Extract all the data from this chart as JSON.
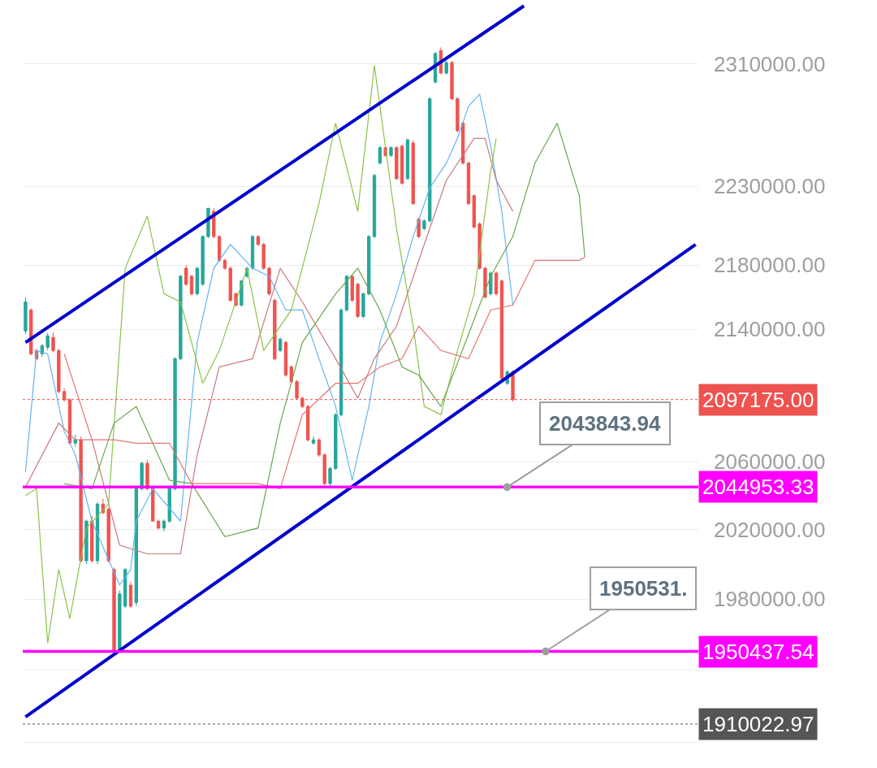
{
  "chart_data": {
    "type": "candlestick",
    "categories": [
      null,
      null,
      null,
      null,
      null,
      null,
      null,
      null,
      null,
      null,
      null,
      null,
      null,
      null,
      null,
      null,
      null,
      null,
      null,
      null,
      null,
      null,
      null,
      null,
      null,
      null,
      null,
      null,
      null,
      null,
      null,
      null,
      null,
      null,
      null,
      null,
      null,
      null,
      null,
      null,
      null,
      null,
      null,
      null,
      null,
      null,
      null,
      null,
      null,
      null,
      null,
      null,
      null,
      null,
      null,
      null,
      null,
      null,
      null,
      null,
      null,
      null,
      null,
      null,
      null,
      null,
      null,
      null,
      null,
      null,
      null,
      null,
      null,
      null,
      null,
      null,
      null,
      null,
      null,
      null,
      null,
      null,
      null,
      null,
      null,
      null,
      null,
      null,
      null,
      null,
      null,
      null,
      null,
      null,
      null,
      null,
      null,
      null,
      null,
      null,
      null,
      null,
      null,
      null,
      null,
      null,
      null,
      null,
      null,
      null,
      null,
      null,
      null,
      null,
      null,
      null,
      null,
      null,
      null,
      null,
      null,
      null
    ],
    "colors": [
      "#26a69a",
      "#ef5350",
      "#ef5350",
      "#26a69a",
      "#26a69a",
      "#ef5350",
      "#ef5350",
      "#ef5350",
      "#ef5350",
      "#26a69a",
      "#ef5350",
      "#26a69a",
      "#ef5350",
      "#26a69a",
      "#ef5350",
      "#ef5350",
      "#ef5350",
      "#26a69a",
      "#26a69a",
      "#ef5350",
      "#26a69a",
      "#26a69a",
      "#ef5350",
      "#ef5350",
      "#ef5350",
      "#26a69a",
      "#26a69a",
      "#26a69a",
      "#26a69a",
      "#ef5350",
      "#ef5350",
      "#26a69a",
      "#26a69a",
      "#26a69a",
      "#ef5350",
      "#ef5350",
      "#ef5350",
      "#ef5350",
      "#ef5350",
      "#26a69a",
      "#26a69a",
      "#26a69a",
      "#ef5350",
      "#ef5350",
      "#ef5350",
      "#ef5350",
      "#26a69a",
      "#ef5350",
      "#ef5350",
      "#ef5350",
      "#ef5350",
      "#ef5350",
      "#26a69a",
      "#ef5350",
      "#ef5350",
      "#26a69a",
      "#26a69a",
      "#26a69a",
      "#26a69a",
      "#ef5350",
      "#ef5350",
      "#26a69a",
      "#26a69a",
      "#26a69a",
      "#26a69a",
      "#ef5350",
      "#26a69a",
      "#ef5350",
      "#ef5350",
      "#26a69a",
      "#ef5350",
      "#ef5350",
      "#26a69a",
      "#26a69a",
      "#26a69a",
      "#ef5350",
      "#26a69a",
      "#ef5350",
      "#ef5350",
      "#ef5350",
      "#ef5350",
      "#ef5350",
      "#ef5350",
      "#ef5350",
      "#26a69a",
      "#ef5350",
      "#ef5350",
      "#26a69a",
      "#ef5350",
      null,
      null,
      null,
      null,
      null,
      null,
      null,
      null,
      null,
      null,
      null,
      null,
      null,
      null,
      null,
      null,
      null,
      null,
      null,
      null,
      null,
      null,
      null,
      null,
      null,
      null,
      null,
      null,
      null,
      null,
      null,
      null,
      null
    ],
    "ohlc": [
      [
        2139000,
        2160000,
        2137000,
        2157000
      ],
      [
        2152000,
        2153000,
        2124000,
        2125000
      ],
      [
        2127000,
        2128000,
        2121000,
        2122000
      ],
      [
        2125000,
        2131000,
        2123000,
        2130000
      ],
      [
        2129000,
        2138000,
        2127000,
        2136000
      ],
      [
        2135000,
        2138000,
        2126000,
        2127000
      ],
      [
        2127000,
        2128000,
        2101000,
        2102000
      ],
      [
        2102000,
        2104000,
        2096000,
        2097000
      ],
      [
        2097000,
        2098000,
        2070000,
        2071000
      ],
      [
        2071000,
        2076000,
        2069000,
        2073000
      ],
      [
        2073000,
        2075000,
        2001000,
        2002000
      ],
      [
        2002000,
        2026000,
        2000000,
        2025000
      ],
      [
        2025000,
        2028000,
        2001000,
        2002000
      ],
      [
        2002000,
        2036000,
        2000000,
        2035000
      ],
      [
        2035000,
        2038000,
        2029000,
        2030000
      ],
      [
        2032000,
        2033000,
        2001000,
        2002000
      ],
      [
        1997000,
        1998000,
        1950000,
        1951000
      ],
      [
        1951000,
        1985000,
        1950000,
        1983000
      ],
      [
        1976000,
        1998000,
        1975000,
        1997000
      ],
      [
        1988000,
        1990000,
        1975000,
        1976000
      ],
      [
        1978000,
        2045000,
        1976000,
        2044000
      ],
      [
        2044000,
        2060000,
        2043000,
        2059000
      ],
      [
        2059000,
        2061000,
        2043000,
        2044000
      ],
      [
        2044000,
        2045000,
        2025000,
        2025000
      ],
      [
        2025000,
        2026000,
        2020000,
        2021000
      ],
      [
        2021000,
        2026000,
        2019000,
        2025000
      ],
      [
        2025000,
        2045000,
        2024000,
        2044000
      ],
      [
        2044000,
        2123000,
        2043000,
        2122000
      ],
      [
        2122000,
        2174000,
        2121000,
        2173000
      ],
      [
        2178000,
        2180000,
        2167000,
        2168000
      ],
      [
        2173000,
        2174000,
        2161000,
        2162000
      ],
      [
        2162000,
        2179000,
        2161000,
        2178000
      ],
      [
        2168000,
        2199000,
        2167000,
        2198000
      ],
      [
        2198000,
        2216000,
        2197000,
        2216000
      ],
      [
        2214000,
        2216000,
        2197000,
        2198000
      ],
      [
        2198000,
        2199000,
        2182000,
        2183000
      ],
      [
        2183000,
        2184000,
        2177000,
        2178000
      ],
      [
        2178000,
        2179000,
        2157000,
        2158000
      ],
      [
        2162000,
        2163000,
        2154000,
        2155000
      ],
      [
        2155000,
        2171000,
        2154000,
        2170000
      ],
      [
        2173000,
        2179000,
        2172000,
        2178000
      ],
      [
        2178000,
        2199000,
        2177000,
        2198000
      ],
      [
        2198000,
        2199000,
        2192000,
        2193000
      ],
      [
        2193000,
        2194000,
        2177000,
        2178000
      ],
      [
        2178000,
        2179000,
        2161000,
        2162000
      ],
      [
        2158000,
        2159000,
        2121000,
        2122000
      ],
      [
        2127000,
        2135000,
        2126000,
        2134000
      ],
      [
        2132000,
        2133000,
        2111000,
        2112000
      ],
      [
        2117000,
        2118000,
        2107000,
        2108000
      ],
      [
        2108000,
        2109000,
        2097000,
        2098000
      ],
      [
        2098000,
        2099000,
        2092000,
        2093000
      ],
      [
        2093000,
        2094000,
        2072000,
        2073000
      ],
      [
        2071000,
        2075000,
        2070000,
        2073000
      ],
      [
        2073000,
        2074000,
        2063000,
        2064000
      ],
      [
        2064000,
        2065000,
        2046000,
        2047000
      ],
      [
        2047000,
        2057000,
        2045000,
        2056000
      ],
      [
        2056000,
        2089000,
        2055000,
        2088000
      ],
      [
        2088000,
        2153000,
        2087000,
        2152000
      ],
      [
        2152000,
        2174000,
        2151000,
        2173000
      ],
      [
        2173000,
        2174000,
        2157000,
        2158000
      ],
      [
        2168000,
        2169000,
        2147000,
        2148000
      ],
      [
        2148000,
        2163000,
        2147000,
        2162000
      ],
      [
        2162000,
        2199000,
        2161000,
        2198000
      ],
      [
        2198000,
        2238000,
        2197000,
        2237000
      ],
      [
        2245000,
        2256000,
        2244000,
        2255000
      ],
      [
        2255000,
        2256000,
        2249000,
        2250000
      ],
      [
        2250000,
        2256000,
        2249000,
        2255000
      ],
      [
        2255000,
        2256000,
        2234000,
        2235000
      ],
      [
        2256000,
        2257000,
        2231000,
        2232000
      ],
      [
        2235000,
        2261000,
        2234000,
        2260000
      ],
      [
        2258000,
        2260000,
        2218000,
        2219000
      ],
      [
        2209000,
        2210000,
        2197000,
        2198000
      ],
      [
        2203000,
        2209000,
        2202000,
        2208000
      ],
      [
        2208000,
        2288000,
        2207000,
        2287000
      ],
      [
        2298000,
        2318000,
        2297000,
        2317000
      ],
      [
        2319000,
        2321000,
        2303000,
        2304000
      ],
      [
        2304000,
        2312000,
        2303000,
        2311000
      ],
      [
        2311000,
        2312000,
        2286000,
        2287000
      ],
      [
        2287000,
        2288000,
        2265000,
        2266000
      ],
      [
        2271000,
        2272000,
        2244000,
        2245000
      ],
      [
        2245000,
        2246000,
        2218000,
        2219000
      ],
      [
        2224000,
        2225000,
        2203000,
        2204000
      ],
      [
        2206000,
        2207000,
        2177000,
        2178000
      ],
      [
        2178000,
        2179000,
        2159000,
        2160000
      ],
      [
        2162000,
        2176000,
        2161000,
        2175000
      ],
      [
        2175000,
        2176000,
        2161000,
        2162000
      ],
      [
        2170000,
        2171000,
        2109000,
        2110000
      ],
      [
        2107000,
        2115000,
        2106000,
        2114000
      ],
      [
        2114000,
        2115000,
        2096000,
        2097175
      ],
      null,
      null,
      null,
      null,
      null,
      null,
      null,
      null,
      null,
      null,
      null,
      null,
      null,
      null,
      null,
      null,
      null,
      null,
      null,
      null,
      null,
      null,
      null,
      null,
      null,
      null,
      null,
      null,
      null,
      null,
      null,
      null,
      null
    ],
    "series": [
      {
        "type": "line",
        "color": "#64b5f6",
        "values": [
          2054000,
          null,
          2127000,
          null,
          2125000,
          null,
          null,
          2078000,
          null,
          2064000,
          null,
          null,
          2025000,
          null,
          null,
          null,
          null,
          1988000,
          null,
          1997000,
          2025000,
          null,
          null,
          2044000,
          null,
          null,
          null,
          null,
          2025000,
          null,
          null,
          2132000,
          null,
          null,
          2178000,
          null,
          null,
          2193000,
          null,
          null,
          null,
          2178000,
          null,
          null,
          2173000,
          null,
          null,
          2152000,
          null,
          null,
          2152000,
          null,
          null,
          2122000,
          null,
          null,
          2093000,
          null,
          null,
          2049000,
          null,
          null,
          2093000,
          null,
          2132000,
          null,
          null,
          2162000,
          null,
          null,
          2198000,
          null,
          null,
          2229000,
          null,
          null,
          2245000,
          null,
          2261000,
          null,
          2282000,
          null,
          2290000,
          null,
          2256000,
          null,
          2214000,
          null,
          2155000,
          null,
          null,
          null,
          null,
          null,
          null,
          null,
          null,
          null,
          null,
          null,
          null,
          null,
          null,
          null,
          null,
          null,
          null,
          null,
          null,
          null,
          null,
          null,
          null,
          null,
          null,
          null,
          null,
          null,
          null,
          null,
          null,
          null
        ]
      },
      {
        "type": "line",
        "color": "#c97a7a",
        "values": [
          2045000,
          null,
          null,
          null,
          null,
          null,
          2083000,
          null,
          null,
          2073000,
          null,
          null,
          2073000,
          null,
          null,
          null,
          null,
          2011000,
          null,
          null,
          null,
          null,
          2006000,
          null,
          null,
          null,
          null,
          null,
          2006000,
          null,
          null,
          2064000,
          null,
          null,
          null,
          2117000,
          null,
          null,
          null,
          null,
          null,
          2122000,
          null,
          null,
          null,
          null,
          2178000,
          null,
          null,
          null,
          2157000,
          null,
          null,
          null,
          null,
          null,
          2122000,
          null,
          null,
          null,
          2098000,
          null,
          null,
          2122000,
          null,
          null,
          null,
          2142000,
          null,
          null,
          null,
          null,
          2193000,
          null,
          null,
          null,
          2234000,
          null,
          null,
          null,
          null,
          2261000,
          null,
          2261000,
          null,
          2234000,
          null,
          null,
          2214000,
          null,
          null,
          null,
          null,
          null,
          null,
          null,
          null,
          null,
          null,
          null,
          null,
          null,
          null,
          null,
          null,
          null,
          null,
          null,
          null,
          null,
          null,
          null,
          null,
          null,
          null,
          null,
          null,
          null,
          null,
          null,
          null,
          null
        ]
      },
      {
        "type": "line",
        "color": "#8bc34a",
        "values": [
          2040000,
          null,
          2044000,
          null,
          1955000,
          null,
          1997000,
          null,
          1969000,
          null,
          null,
          2021000,
          null,
          null,
          null,
          2035000,
          null,
          null,
          2178000,
          null,
          null,
          null,
          2211000,
          null,
          null,
          2162000,
          null,
          null,
          2157000,
          null,
          null,
          null,
          2107000,
          null,
          null,
          2127000,
          null,
          null,
          null,
          null,
          2178000,
          null,
          null,
          2127000,
          null,
          null,
          null,
          null,
          2152000,
          null,
          null,
          null,
          null,
          2219000,
          null,
          null,
          2271000,
          null,
          null,
          null,
          2214000,
          null,
          null,
          2309000,
          null,
          null,
          null,
          2203000,
          null,
          null,
          2142000,
          null,
          2093000,
          null,
          null,
          2088000,
          null,
          null,
          2127000,
          null,
          null,
          2162000,
          null,
          null,
          2240000,
          2261000,
          null,
          null,
          null,
          null,
          null,
          null,
          null,
          null,
          null,
          null,
          null,
          null,
          null,
          null,
          null,
          null,
          null,
          null,
          null,
          null,
          null,
          null,
          null,
          null,
          null,
          null,
          null,
          null,
          null,
          null,
          null,
          null,
          null,
          null,
          null,
          null
        ]
      },
      {
        "type": "line",
        "color": "#6aa84f",
        "values": [
          null,
          null,
          null,
          null,
          null,
          null,
          null,
          2047000,
          null,
          null,
          null,
          null,
          2044000,
          null,
          null,
          null,
          2083000,
          null,
          null,
          null,
          2093000,
          null,
          null,
          null,
          null,
          null,
          2049000,
          null,
          null,
          null,
          2047000,
          null,
          null,
          null,
          null,
          null,
          2016000,
          null,
          null,
          null,
          null,
          null,
          2021000,
          null,
          null,
          null,
          2083000,
          null,
          null,
          null,
          2132000,
          null,
          null,
          null,
          null,
          null,
          2162000,
          null,
          null,
          null,
          2178000,
          null,
          null,
          null,
          2152000,
          null,
          null,
          null,
          2117000,
          null,
          null,
          2112000,
          null,
          null,
          null,
          2093000,
          null,
          null,
          null,
          null,
          2137000,
          null,
          null,
          null,
          2173000,
          null,
          null,
          null,
          2198000,
          null,
          null,
          null,
          2245000,
          null,
          null,
          null,
          2271000,
          null,
          null,
          null,
          2224000,
          2185000,
          null,
          null,
          null,
          null,
          null,
          null,
          null,
          null,
          null,
          null,
          null,
          null,
          null,
          null,
          null,
          null,
          null,
          null,
          null,
          null
        ]
      },
      {
        "type": "line",
        "color": "#e57373",
        "values": [
          null,
          null,
          null,
          null,
          null,
          null,
          null,
          2125000,
          null,
          null,
          null,
          null,
          2073000,
          null,
          null,
          null,
          2073000,
          null,
          null,
          null,
          2071000,
          null,
          null,
          null,
          null,
          null,
          2071000,
          null,
          null,
          null,
          2047000,
          null,
          null,
          null,
          null,
          null,
          2047000,
          null,
          null,
          null,
          null,
          null,
          2047000,
          null,
          null,
          null,
          2044000,
          null,
          null,
          null,
          2088000,
          null,
          null,
          null,
          null,
          null,
          2107000,
          null,
          null,
          null,
          2107000,
          null,
          null,
          null,
          2117000,
          null,
          null,
          null,
          2122000,
          null,
          null,
          2142000,
          null,
          null,
          null,
          2127000,
          null,
          null,
          null,
          null,
          2122000,
          null,
          null,
          null,
          2152000,
          null,
          null,
          null,
          2155000,
          null,
          null,
          null,
          2183000,
          null,
          null,
          null,
          2183000,
          null,
          null,
          null,
          2183000,
          2185000,
          null,
          null,
          null,
          null,
          null,
          null,
          null,
          null,
          null,
          null,
          null,
          null,
          null,
          null,
          null,
          null,
          null,
          null,
          null,
          null
        ]
      },
      {
        "type": "line",
        "color": "#0000cc",
        "values": [
          2132000,
          null,
          null,
          null,
          null,
          null,
          null,
          null,
          null,
          null,
          null,
          null,
          null,
          null,
          null,
          null,
          null,
          null,
          null,
          null,
          null,
          null,
          null,
          null,
          null,
          null,
          null,
          null,
          null,
          null,
          null,
          null,
          null,
          null,
          null,
          null,
          null,
          null,
          null,
          null,
          null,
          null,
          null,
          null,
          null,
          null,
          null,
          null,
          null,
          null,
          null,
          null,
          null,
          null,
          null,
          null,
          null,
          null,
          null,
          null,
          null,
          null,
          null,
          null,
          null,
          null,
          null,
          null,
          null,
          null,
          null,
          null,
          null,
          null,
          null,
          null,
          null,
          null,
          null,
          null,
          null,
          null,
          null,
          null,
          null,
          null,
          null,
          null,
          null,
          null,
          2349000,
          null,
          null,
          null,
          null,
          null,
          null,
          null,
          null,
          null,
          null,
          null,
          null,
          null,
          null,
          null,
          null,
          null,
          null,
          null,
          null,
          null,
          null,
          null,
          null,
          null,
          null,
          null,
          null,
          null,
          null,
          null
        ]
      },
      {
        "type": "line",
        "color": "#0000cc",
        "values": [
          1914000,
          null,
          null,
          null,
          null,
          null,
          null,
          null,
          null,
          null,
          null,
          null,
          null,
          null,
          null,
          null,
          null,
          null,
          null,
          null,
          null,
          null,
          null,
          null,
          null,
          null,
          null,
          null,
          null,
          null,
          null,
          null,
          null,
          null,
          null,
          null,
          null,
          null,
          null,
          null,
          null,
          null,
          null,
          null,
          null,
          null,
          null,
          null,
          null,
          null,
          null,
          null,
          null,
          null,
          null,
          null,
          null,
          null,
          null,
          null,
          null,
          null,
          null,
          null,
          null,
          null,
          null,
          null,
          null,
          null,
          null,
          null,
          null,
          null,
          null,
          null,
          null,
          null,
          null,
          null,
          null,
          null,
          null,
          null,
          null,
          null,
          null,
          null,
          null,
          null,
          null,
          null,
          null,
          null,
          null,
          null,
          null,
          null,
          null,
          null,
          null,
          null,
          null,
          null,
          null,
          null,
          null,
          null,
          null,
          null,
          null,
          null,
          null,
          null,
          null,
          null,
          null,
          null,
          null,
          null,
          null,
          2193000
        ]
      }
    ],
    "ylim": [
      1886000,
      2353000
    ],
    "log": true,
    "yticks": [
      {
        "value": 1900000,
        "label": null
      },
      {
        "value": 1940000,
        "label": null
      },
      {
        "value": 1980000,
        "label": "1980000.00"
      },
      {
        "value": 2020000,
        "label": "2020000.00"
      },
      {
        "value": 2060000,
        "label": "2060000.00"
      },
      {
        "value": 2140000,
        "label": "2140000.00"
      },
      {
        "value": 2180000,
        "label": "2180000.00"
      },
      {
        "value": 2230000,
        "label": "2230000.00"
      },
      {
        "value": 2310000,
        "label": "2310000.00"
      }
    ],
    "ref_lines": [
      {
        "axis": "y",
        "value": 2097175,
        "label": "2097175.00",
        "color": "#ef5350",
        "line_style": "dotted"
      },
      {
        "axis": "y",
        "value": 2044953.33,
        "label": "2044953.33",
        "color": "#ff00ff",
        "line_style": "solid"
      },
      {
        "axis": "y",
        "value": 1950437.54,
        "label": "1950437.54",
        "color": "#ff00ff",
        "line_style": "solid"
      },
      {
        "axis": "y",
        "value": 1910022.97,
        "label": "1910022.97",
        "color": "#555555",
        "line_style": "dotted"
      }
    ],
    "annotations": [
      {
        "text": "2043843.94",
        "y": 2044953.33
      },
      {
        "text": "1950531.",
        "y": 1950437.54
      }
    ],
    "grid": "y",
    "tick_labels": "y"
  }
}
